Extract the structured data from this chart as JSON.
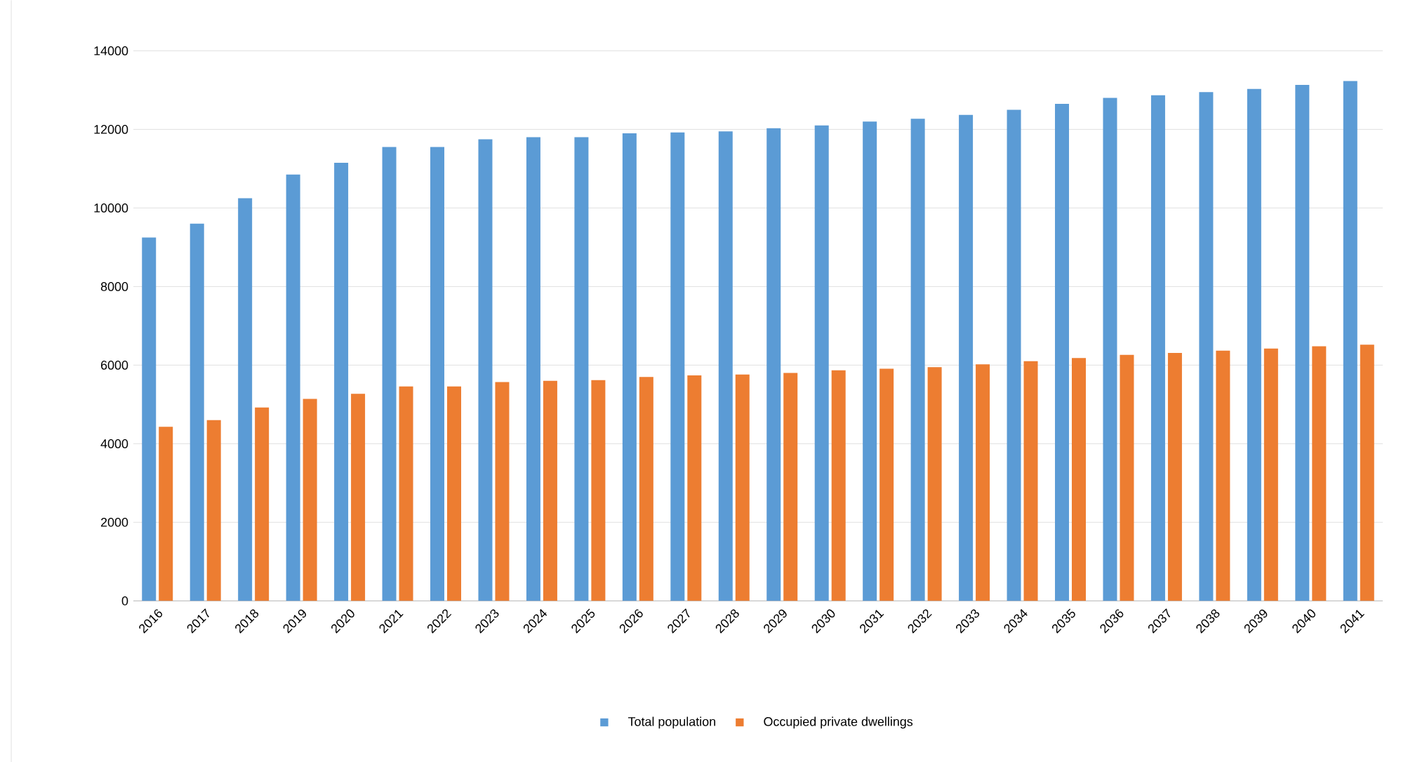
{
  "chart_data": {
    "type": "bar",
    "categories": [
      "2016",
      "2017",
      "2018",
      "2019",
      "2020",
      "2021",
      "2022",
      "2023",
      "2024",
      "2025",
      "2026",
      "2027",
      "2028",
      "2029",
      "2030",
      "2031",
      "2032",
      "2033",
      "2034",
      "2035",
      "2036",
      "2037",
      "2038",
      "2039",
      "2040",
      "2041"
    ],
    "series": [
      {
        "name": "Total population",
        "color": "#5b9bd5",
        "values": [
          9250,
          9600,
          10250,
          10850,
          11150,
          11550,
          11550,
          11750,
          11800,
          11800,
          11900,
          11920,
          11950,
          12030,
          12100,
          12200,
          12270,
          12370,
          12500,
          12650,
          12800,
          12870,
          12950,
          13030,
          13130,
          13230
        ]
      },
      {
        "name": "Occupied private dwellings",
        "color": "#ed7d31",
        "values": [
          4430,
          4600,
          4920,
          5140,
          5270,
          5460,
          5460,
          5570,
          5600,
          5620,
          5700,
          5740,
          5760,
          5800,
          5870,
          5910,
          5950,
          6020,
          6100,
          6180,
          6260,
          6310,
          6370,
          6420,
          6480,
          6520
        ]
      }
    ],
    "ylim": [
      0,
      14000
    ],
    "yticks": [
      0,
      2000,
      4000,
      6000,
      8000,
      10000,
      12000,
      14000
    ],
    "grid": "y",
    "legend": "bottom"
  }
}
